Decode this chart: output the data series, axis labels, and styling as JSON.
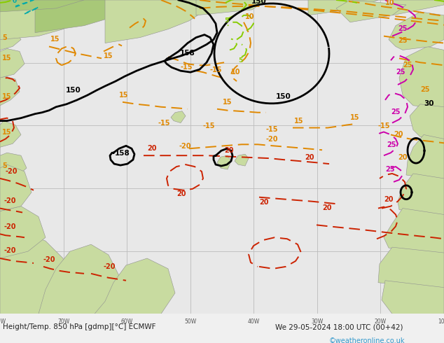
{
  "title_left": "Height/Temp. 850 hPa [gdmp][°C] ECMWF",
  "title_right": "We 29-05-2024 18:00 UTC (00+42)",
  "watermark": "©weatheronline.co.uk",
  "bg_ocean": "#e8e8e8",
  "land_green_light": "#c8dba0",
  "land_green_dark": "#a8c878",
  "grid_color": "#bbbbbb",
  "bottom_bar_color": "#f0f0f0",
  "bottom_text_color": "#222222",
  "watermark_color": "#3399cc",
  "orange": "#e08800",
  "red": "#cc2200",
  "magenta": "#cc00aa",
  "lime": "#88cc00",
  "teal": "#00aaaa",
  "black": "#000000",
  "fig_width": 6.34,
  "fig_height": 4.9,
  "dpi": 100
}
